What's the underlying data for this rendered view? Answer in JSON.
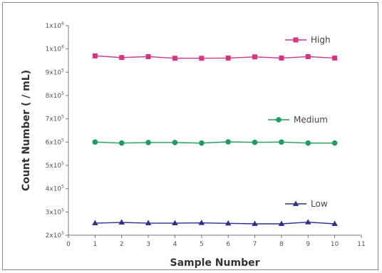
{
  "chart_data": {
    "type": "line",
    "xlabel": "Sample Number",
    "ylabel": "Count Number ( / mL)",
    "xlim": [
      0,
      11
    ],
    "ylim": [
      200000,
      1100000
    ],
    "x_ticks": [
      0,
      1,
      2,
      3,
      4,
      5,
      6,
      7,
      8,
      9,
      10,
      11
    ],
    "y_ticks": [
      {
        "label": "2x10",
        "exp": "5"
      },
      {
        "label": "3x10",
        "exp": "5"
      },
      {
        "label": "4x10",
        "exp": "5"
      },
      {
        "label": "5x10",
        "exp": "5"
      },
      {
        "label": "6x10",
        "exp": "5"
      },
      {
        "label": "7x10",
        "exp": "5"
      },
      {
        "label": "8x10",
        "exp": "5"
      },
      {
        "label": "9x10",
        "exp": "5"
      },
      {
        "label": "1x10",
        "exp": "6"
      },
      {
        "label": "1x10",
        "exp": "6"
      }
    ],
    "grid": false,
    "x": [
      1,
      2,
      3,
      4,
      5,
      6,
      7,
      8,
      9,
      10
    ],
    "series": [
      {
        "name": "High",
        "color": "#d63384",
        "marker": "square",
        "values": [
          970000,
          963000,
          967000,
          960000,
          960000,
          961000,
          966000,
          961000,
          967000,
          961000
        ]
      },
      {
        "name": "Medium",
        "color": "#1e9e5a",
        "marker": "circle",
        "values": [
          600000,
          596000,
          598000,
          598000,
          596000,
          601000,
          599000,
          600000,
          596000,
          596000
        ]
      },
      {
        "name": "Low",
        "color": "#2e2f8f",
        "marker": "triangle",
        "values": [
          252000,
          255000,
          252000,
          252000,
          253000,
          251000,
          249000,
          249000,
          256000,
          249000
        ]
      }
    ]
  }
}
